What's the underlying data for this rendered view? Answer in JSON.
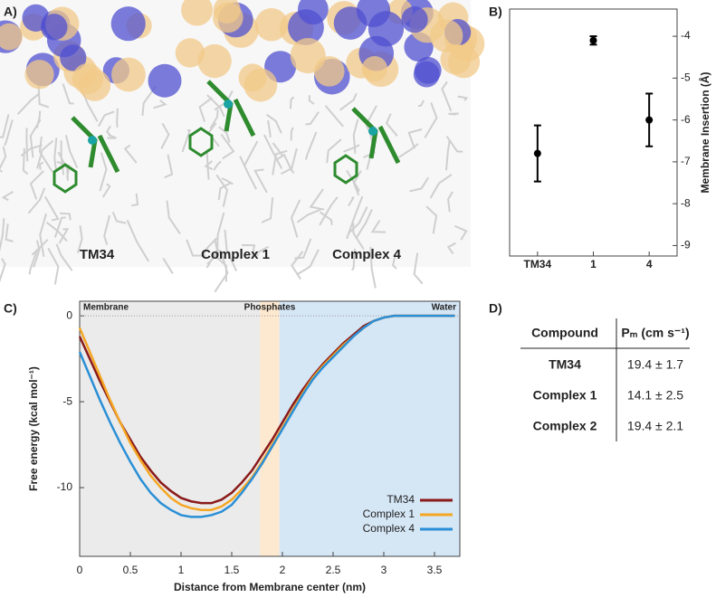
{
  "panels": {
    "a": "A)",
    "b": "B)",
    "c": "C)",
    "d": "D)"
  },
  "image_labels": [
    "TM34",
    "Complex 1",
    "Complex 4"
  ],
  "chart_data": [
    {
      "type": "errorbar",
      "y_label": "Membrane Insertion (Å)",
      "categories": [
        "TM34",
        "1",
        "4"
      ],
      "values": [
        -6.8,
        -4.1,
        -6.0
      ],
      "errors": [
        0.67,
        0.1,
        0.63
      ],
      "color": "#000000",
      "ylim": [
        -9.25,
        -3.35
      ],
      "yticks": [
        -9,
        -8,
        -7,
        -6,
        -5,
        -4
      ]
    },
    {
      "type": "line",
      "x_label": "Distance from Membrane center (nm)",
      "y_label": "Free energy (kcal mol⁻¹)",
      "x": [
        0,
        0.1,
        0.2,
        0.3,
        0.4,
        0.5,
        0.6,
        0.7,
        0.8,
        0.9,
        1.0,
        1.1,
        1.2,
        1.3,
        1.4,
        1.5,
        1.6,
        1.7,
        1.8,
        1.9,
        2.0,
        2.1,
        2.2,
        2.3,
        2.4,
        2.5,
        2.6,
        2.7,
        2.8,
        2.9,
        3.0,
        3.1,
        3.2,
        3.3,
        3.4,
        3.5,
        3.6,
        3.7
      ],
      "series": [
        {
          "name": "TM34",
          "color": "#8b1a1a",
          "values": [
            -1.2,
            -2.5,
            -3.8,
            -5.0,
            -6.2,
            -7.2,
            -8.2,
            -9.0,
            -9.7,
            -10.2,
            -10.6,
            -10.8,
            -10.9,
            -10.9,
            -10.7,
            -10.3,
            -9.7,
            -9.0,
            -8.1,
            -7.2,
            -6.2,
            -5.2,
            -4.3,
            -3.5,
            -2.8,
            -2.2,
            -1.6,
            -1.1,
            -0.6,
            -0.3,
            -0.1,
            0,
            0,
            0,
            0,
            0,
            0,
            0
          ]
        },
        {
          "name": "Complex 1",
          "color": "#f5a623",
          "values": [
            -0.7,
            -2.1,
            -3.5,
            -4.9,
            -6.2,
            -7.4,
            -8.4,
            -9.3,
            -10.0,
            -10.6,
            -11.0,
            -11.2,
            -11.3,
            -11.3,
            -11.1,
            -10.7,
            -10.1,
            -9.4,
            -8.5,
            -7.5,
            -6.5,
            -5.5,
            -4.5,
            -3.6,
            -2.9,
            -2.3,
            -1.7,
            -1.2,
            -0.7,
            -0.3,
            -0.1,
            0,
            0,
            0,
            0,
            0,
            0,
            0
          ]
        },
        {
          "name": "Complex 4",
          "color": "#2a8fd6",
          "values": [
            -2.1,
            -3.5,
            -4.9,
            -6.2,
            -7.4,
            -8.5,
            -9.5,
            -10.3,
            -10.9,
            -11.3,
            -11.6,
            -11.7,
            -11.7,
            -11.6,
            -11.4,
            -11.0,
            -10.3,
            -9.5,
            -8.6,
            -7.6,
            -6.6,
            -5.6,
            -4.6,
            -3.7,
            -3.0,
            -2.4,
            -1.8,
            -1.2,
            -0.7,
            -0.3,
            -0.1,
            0,
            0,
            0,
            0,
            0,
            0,
            0
          ]
        }
      ],
      "regions": [
        {
          "name": "Membrane",
          "range": [
            0,
            1.78
          ],
          "color": "#ebebeb"
        },
        {
          "name": "Phosphates",
          "range": [
            1.78,
            1.97
          ],
          "color": "#fde9cf"
        },
        {
          "name": "Water",
          "range": [
            1.97,
            3.75
          ],
          "color": "#d5e6f5"
        }
      ],
      "xlim": [
        0,
        3.75
      ],
      "ylim": [
        -14,
        0.85
      ],
      "xticks": [
        0,
        0.5,
        1,
        1.5,
        2,
        2.5,
        3,
        3.5
      ],
      "yticks": [
        0,
        -5,
        -10
      ],
      "legend": "lower right"
    }
  ],
  "table": {
    "header": [
      "Compound",
      "Pₘ (cm s⁻¹)"
    ],
    "rows": [
      [
        "TM34",
        "19.4 ± 1.7"
      ],
      [
        "Complex 1",
        "14.1 ± 2.5"
      ],
      [
        "Complex 2",
        "19.4 ± 2.1"
      ]
    ]
  }
}
